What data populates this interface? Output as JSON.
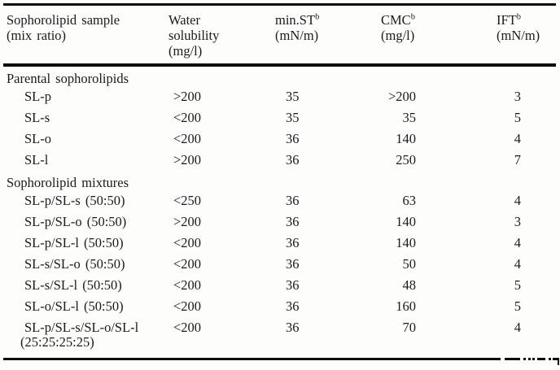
{
  "table": {
    "columns": [
      {
        "line1": "Sophorolipid sample",
        "line2": "(mix ratio)"
      },
      {
        "line1": "Water",
        "line2": "solubility",
        "line3": "(mg/l)"
      },
      {
        "name": "min.ST",
        "sup": "b",
        "unit": "(mN/m)"
      },
      {
        "name": "CMC",
        "sup": "b",
        "unit": "(mg/l)"
      },
      {
        "name": "IFT",
        "sup": "b",
        "unit": "(mN/m)"
      }
    ],
    "sections": [
      {
        "title": "Parental sophorolipids",
        "rows": [
          {
            "sample": "SL-p",
            "water_solubility": ">200",
            "min_st": "35",
            "cmc": ">200",
            "ift": "3"
          },
          {
            "sample": "SL-s",
            "water_solubility": "<200",
            "min_st": "35",
            "cmc": "35",
            "ift": "5"
          },
          {
            "sample": "SL-o",
            "water_solubility": "<200",
            "min_st": "36",
            "cmc": "140",
            "ift": "4"
          },
          {
            "sample": "SL-l",
            "water_solubility": ">200",
            "min_st": "36",
            "cmc": "250",
            "ift": "7"
          }
        ]
      },
      {
        "title": "Sophorolipid mixtures",
        "rows": [
          {
            "sample": "SL-p/SL-s (50:50)",
            "water_solubility": "<250",
            "min_st": "36",
            "cmc": "63",
            "ift": "4"
          },
          {
            "sample": "SL-p/SL-o (50:50)",
            "water_solubility": ">200",
            "min_st": "36",
            "cmc": "140",
            "ift": "3"
          },
          {
            "sample": "SL-p/SL-l (50:50)",
            "water_solubility": "<200",
            "min_st": "36",
            "cmc": "140",
            "ift": "4"
          },
          {
            "sample": "SL-s/SL-o (50:50)",
            "water_solubility": "<200",
            "min_st": "36",
            "cmc": "50",
            "ift": "4"
          },
          {
            "sample": "SL-s/SL-l (50:50)",
            "water_solubility": "<200",
            "min_st": "36",
            "cmc": "48",
            "ift": "5"
          },
          {
            "sample": "SL-o/SL-l (50:50)",
            "water_solubility": "<200",
            "min_st": "36",
            "cmc": "160",
            "ift": "5"
          },
          {
            "sample": "SL-p/SL-s/SL-o/SL-l",
            "sample_line2": "(25:25:25:25)",
            "water_solubility": "<200",
            "min_st": "36",
            "cmc": "70",
            "ift": "4"
          }
        ]
      }
    ]
  }
}
